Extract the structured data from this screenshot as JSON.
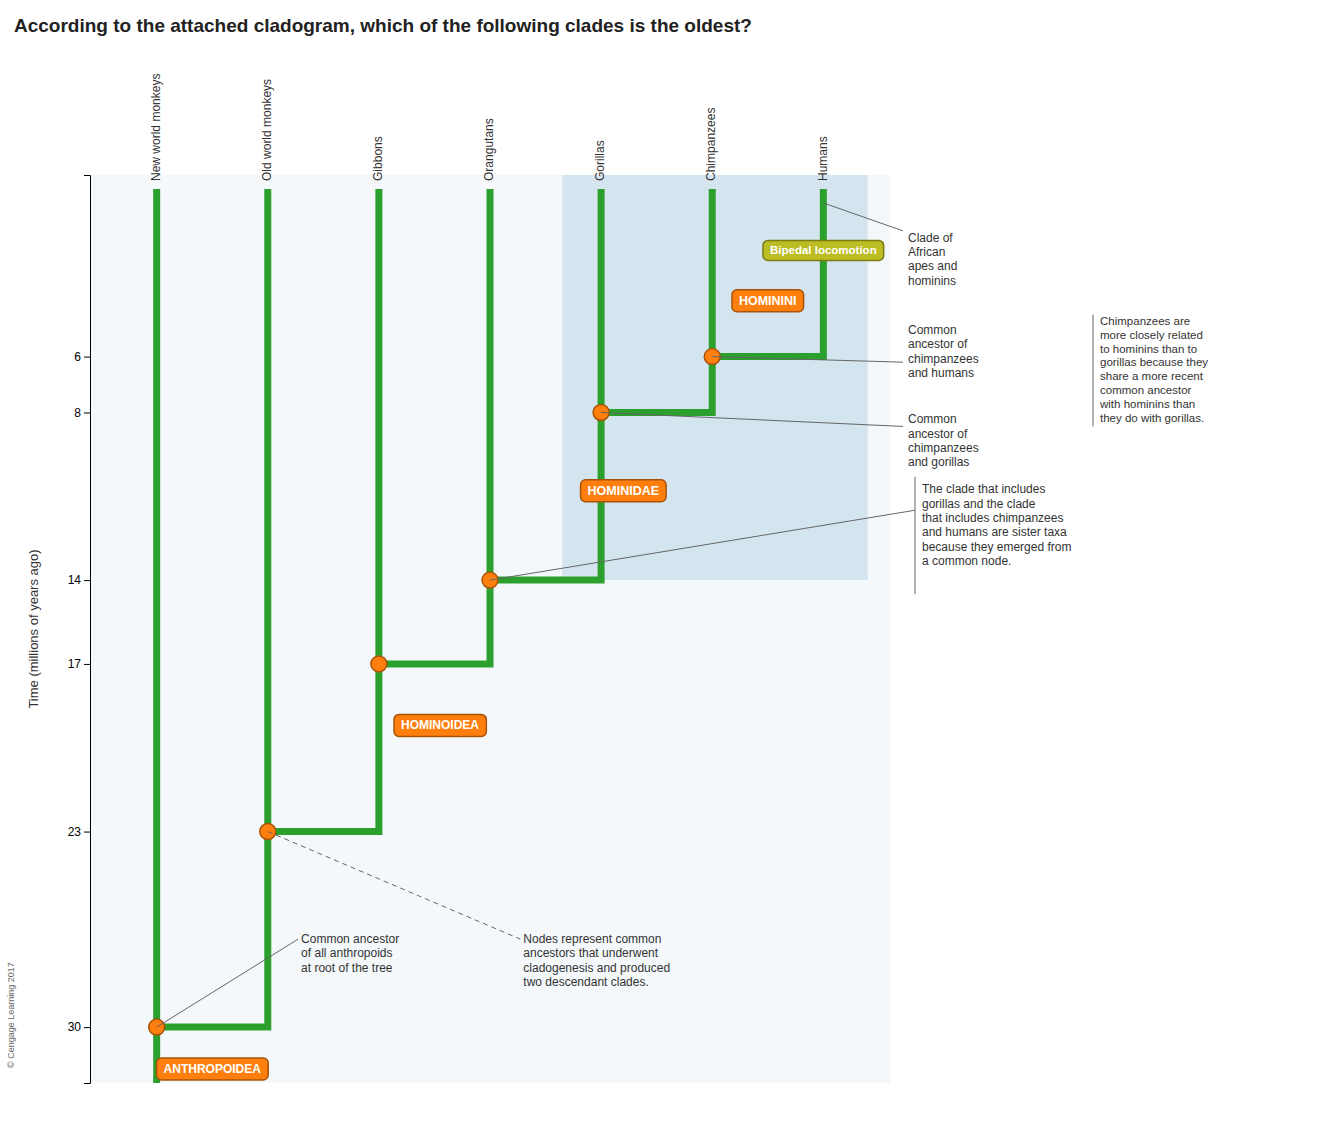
{
  "chart_data": {
    "type": "cladogram",
    "title": "According to the attached cladogram, which of the following clades is the oldest?",
    "y_label": "Time (millions of years ago)",
    "categories": [
      "New world monkeys",
      "Old world monkeys",
      "Gibbons",
      "Orangutans",
      "Gorillas",
      "Chimpanzees",
      "Humans"
    ],
    "values": [
      null,
      30,
      23,
      17,
      14,
      8,
      6
    ],
    "tip_time": 0,
    "ylim": [
      32,
      -0.5
    ],
    "yticks": [
      6,
      8,
      14,
      17,
      23,
      30
    ],
    "clade_labels": [
      "ANTHROPOIDEA",
      "HOMINOIDEA",
      "HOMINIDAE",
      "HOMININI"
    ],
    "trait_labels": [
      "Bipedal locomotion"
    ],
    "annotations": {
      "common_ancestor": "Common ancestor\nof all anthropoids\nat root of the tree",
      "nodes": "Nodes represent common\nancestors that underwent\ncladogenesis and produced\ntwo descendant clades.",
      "clade_african": "Clade of\nAfrican\napes and\nhominins",
      "common_chimp_human": "Common\nancestor of\nchimpanzees\nand humans",
      "chimp_related": "Chimpanzees are\nmore closely related\nto hominins than to\ngorillas because they\nshare a more recent\ncommon ancestor\nwith hominins than\nthey do with gorillas.",
      "common_chimp_gorilla": "Common\nancestor of\nchimpanzees\nand gorillas",
      "sister_taxa": "The clade that includes\ngorillas and the clade\nthat includes chimpanzees\nand humans are sister taxa\nbecause they emerged from\na common node."
    },
    "copyright": "© Cengage Learning 2017"
  }
}
